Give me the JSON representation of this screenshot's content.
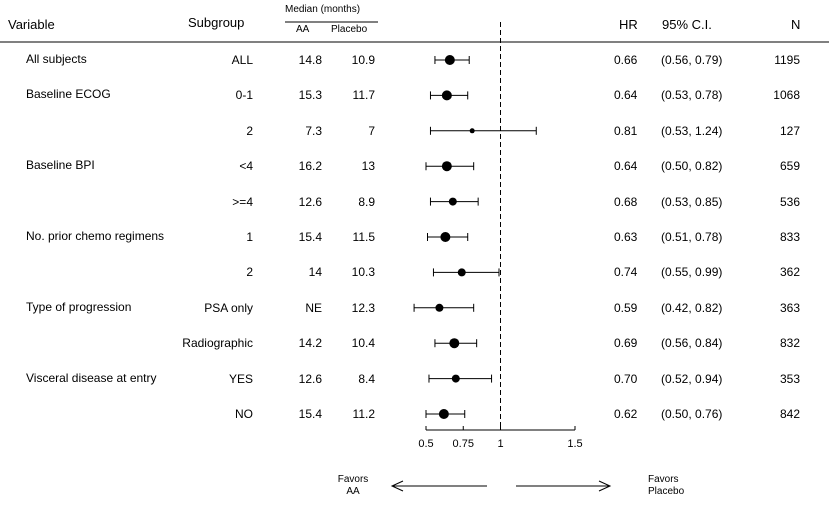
{
  "headers": {
    "variable": "Variable",
    "subgroup": "Subgroup",
    "median": "Median (months)",
    "aa": "AA",
    "placebo": "Placebo",
    "hr": "HR",
    "ci": "95% C.I.",
    "n": "N"
  },
  "favors": {
    "left_line1": "Favors",
    "left_line2": "AA",
    "right_line1": "Favors",
    "right_line2": "Placebo"
  },
  "chart_data": {
    "type": "forest",
    "xlim": [
      0.5,
      1.5
    ],
    "reference_line": 1,
    "ticks": [
      "0.5",
      "0.75",
      "1",
      "1.5"
    ],
    "tick_values": [
      0.5,
      0.75,
      1,
      1.5
    ],
    "rows": [
      {
        "variable": "All subjects",
        "subgroup": "ALL",
        "aa": "14.8",
        "placebo": "10.9",
        "hr": 0.66,
        "lo": 0.56,
        "hi": 0.79,
        "hr_text": "0.66",
        "ci_text": "(0.56, 0.79)",
        "n": "1195",
        "size": "large"
      },
      {
        "variable": "Baseline ECOG",
        "subgroup": "0-1",
        "aa": "15.3",
        "placebo": "11.7",
        "hr": 0.64,
        "lo": 0.53,
        "hi": 0.78,
        "hr_text": "0.64",
        "ci_text": "(0.53, 0.78)",
        "n": "1068",
        "size": "large"
      },
      {
        "variable": "",
        "subgroup": "2",
        "aa": "7.3",
        "placebo": "7",
        "hr": 0.81,
        "lo": 0.53,
        "hi": 1.24,
        "hr_text": "0.81",
        "ci_text": "(0.53, 1.24)",
        "n": "127",
        "size": "small"
      },
      {
        "variable": "Baseline BPI",
        "subgroup": "<4",
        "aa": "16.2",
        "placebo": "13",
        "hr": 0.64,
        "lo": 0.5,
        "hi": 0.82,
        "hr_text": "0.64",
        "ci_text": "(0.50, 0.82)",
        "n": "659",
        "size": "large"
      },
      {
        "variable": "",
        "subgroup": ">=4",
        "aa": "12.6",
        "placebo": "8.9",
        "hr": 0.68,
        "lo": 0.53,
        "hi": 0.85,
        "hr_text": "0.68",
        "ci_text": "(0.53, 0.85)",
        "n": "536",
        "size": "medium"
      },
      {
        "variable": "No. prior chemo regimens",
        "subgroup": "1",
        "aa": "15.4",
        "placebo": "11.5",
        "hr": 0.63,
        "lo": 0.51,
        "hi": 0.78,
        "hr_text": "0.63",
        "ci_text": "(0.51, 0.78)",
        "n": "833",
        "size": "large"
      },
      {
        "variable": "",
        "subgroup": "2",
        "aa": "14",
        "placebo": "10.3",
        "hr": 0.74,
        "lo": 0.55,
        "hi": 0.99,
        "hr_text": "0.74",
        "ci_text": "(0.55, 0.99)",
        "n": "362",
        "size": "medium"
      },
      {
        "variable": "Type of progression",
        "subgroup": "PSA only",
        "aa": "NE",
        "placebo": "12.3",
        "hr": 0.59,
        "lo": 0.42,
        "hi": 0.82,
        "hr_text": "0.59",
        "ci_text": "(0.42, 0.82)",
        "n": "363",
        "size": "medium"
      },
      {
        "variable": "",
        "subgroup": "Radiographic",
        "aa": "14.2",
        "placebo": "10.4",
        "hr": 0.69,
        "lo": 0.56,
        "hi": 0.84,
        "hr_text": "0.69",
        "ci_text": "(0.56, 0.84)",
        "n": "832",
        "size": "large"
      },
      {
        "variable": "Visceral disease at entry",
        "subgroup": "YES",
        "aa": "12.6",
        "placebo": "8.4",
        "hr": 0.7,
        "lo": 0.52,
        "hi": 0.94,
        "hr_text": "0.70",
        "ci_text": "(0.52, 0.94)",
        "n": "353",
        "size": "medium"
      },
      {
        "variable": "",
        "subgroup": "NO",
        "aa": "15.4",
        "placebo": "11.2",
        "hr": 0.62,
        "lo": 0.5,
        "hi": 0.76,
        "hr_text": "0.62",
        "ci_text": "(0.50, 0.76)",
        "n": "842",
        "size": "large"
      }
    ]
  }
}
